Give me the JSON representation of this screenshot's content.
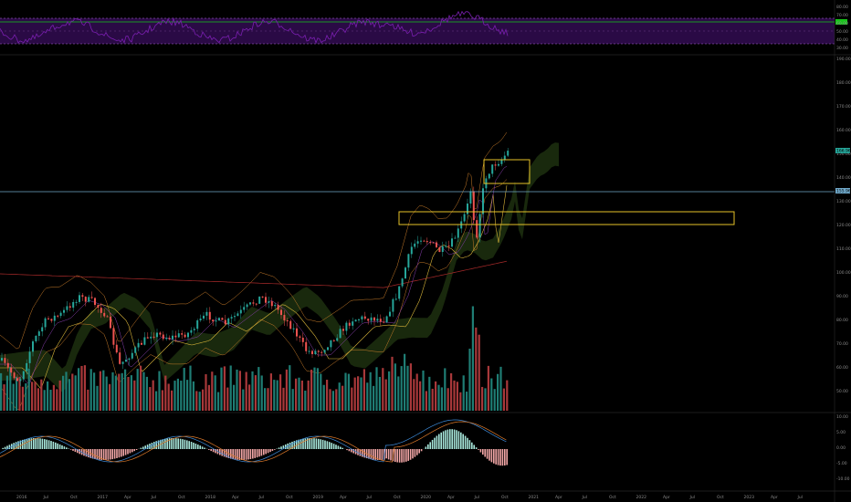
{
  "chart_data": [
    {
      "type": "line",
      "panel": "rsi",
      "ylabel": "",
      "ticks": [
        "80.00",
        "70.00",
        "60.00",
        "50.00",
        "40.00",
        "30.00"
      ],
      "badge": {
        "value": "",
        "color": "#17c41a"
      },
      "colors": {
        "line": "#7a1fb0",
        "band_fill": "#2a0a45",
        "band_border": "#b06adb",
        "mid": "#6a3a8a"
      }
    },
    {
      "type": "candlestick",
      "panel": "price",
      "ylabel": "",
      "ticks": [
        "190.00",
        "180.00",
        "170.00",
        "160.00",
        "150.00",
        "140.00",
        "130.00",
        "120.00",
        "110.00",
        "100.00",
        "90.00",
        "80.00",
        "70.00",
        "60.00",
        "50.00"
      ],
      "last_price_label": "166.96",
      "support_label": "155.96",
      "colors": {
        "up": "#26a69a",
        "down": "#ef5350",
        "zone": "#e6c229",
        "cloud": "#2d4a18",
        "support": "#6fa8c9",
        "last": "#26a69a"
      },
      "volume_colors": {
        "up": "#1f7d74",
        "down": "#a8383a"
      }
    },
    {
      "type": "histogram",
      "panel": "macd",
      "ylabel": "",
      "ticks": [
        "10.00",
        "5.00",
        "0.00",
        "-5.00",
        "-10.00"
      ],
      "colors": {
        "pos": "#a8e8dc",
        "neg": "#f2a6a6",
        "macd": "#3d8bd9",
        "signal": "#e07b2a"
      }
    }
  ],
  "time_axis": {
    "labels": [
      "2016",
      "Jul",
      "Oct",
      "2017",
      "Apr",
      "Jul",
      "Oct",
      "2018",
      "Apr",
      "Jul",
      "Oct",
      "2019",
      "Apr",
      "Jul",
      "Oct",
      "2020",
      "Apr",
      "Jul",
      "Oct",
      "2021",
      "Apr",
      "Jul",
      "Oct",
      "2022",
      "Apr",
      "Jul",
      "Oct",
      "2023",
      "Apr",
      "Jul"
    ]
  }
}
